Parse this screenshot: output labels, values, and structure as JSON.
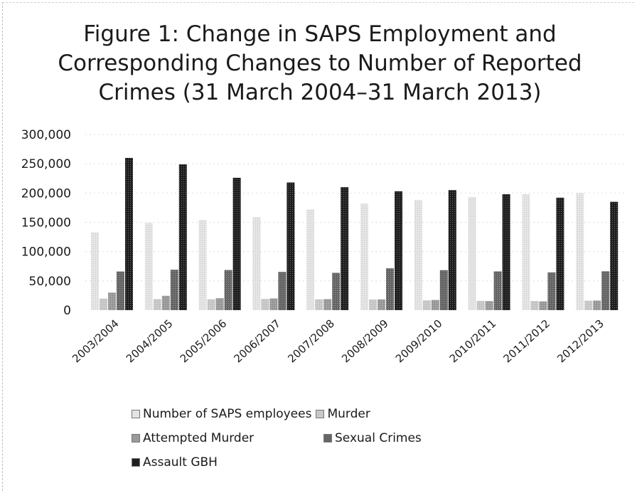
{
  "chart_data": {
    "type": "bar",
    "title": "Figure 1: Change in SAPS Employment and Corresponding Changes to Number of Reported Crimes (31 March 2004–31 March 2013)",
    "xlabel": "",
    "ylabel": "",
    "ylim": [
      0,
      300000
    ],
    "yticks": [
      "0",
      "50,000",
      "100,000",
      "150,000",
      "200,000",
      "250,000",
      "300,000"
    ],
    "yticks_values": [
      0,
      50000,
      100000,
      150000,
      200000,
      250000,
      300000
    ],
    "grid": true,
    "legend_position": "bottom",
    "categories": [
      "2003/2004",
      "2004/2005",
      "2005/2006",
      "2006/2007",
      "2007/2008",
      "2008/2009",
      "2009/2010",
      "2010/2011",
      "2011/2012",
      "2012/2013"
    ],
    "series": [
      {
        "name": "Number of SAPS employees",
        "color": "#e4e4e4",
        "values": [
          133000,
          149000,
          154000,
          159000,
          172000,
          182000,
          188000,
          193000,
          198000,
          200000
        ]
      },
      {
        "name": "Murder",
        "color": "#c8c8c8",
        "values": [
          19800,
          18800,
          18500,
          19100,
          18400,
          18100,
          16800,
          15900,
          15600,
          16200
        ]
      },
      {
        "name": "Attempted Murder",
        "color": "#9a9a9a",
        "values": [
          30000,
          24500,
          20500,
          20100,
          18800,
          18300,
          17400,
          15500,
          14900,
          16400
        ]
      },
      {
        "name": "Sexual Crimes",
        "color": "#666666",
        "values": [
          66000,
          69000,
          68500,
          65300,
          63800,
          71500,
          68300,
          66200,
          64500,
          66400
        ]
      },
      {
        "name": "Assault GBH",
        "color": "#1f1f1f",
        "values": [
          260000,
          249000,
          226000,
          218000,
          210000,
          203000,
          205000,
          198000,
          192000,
          185000
        ]
      }
    ]
  }
}
